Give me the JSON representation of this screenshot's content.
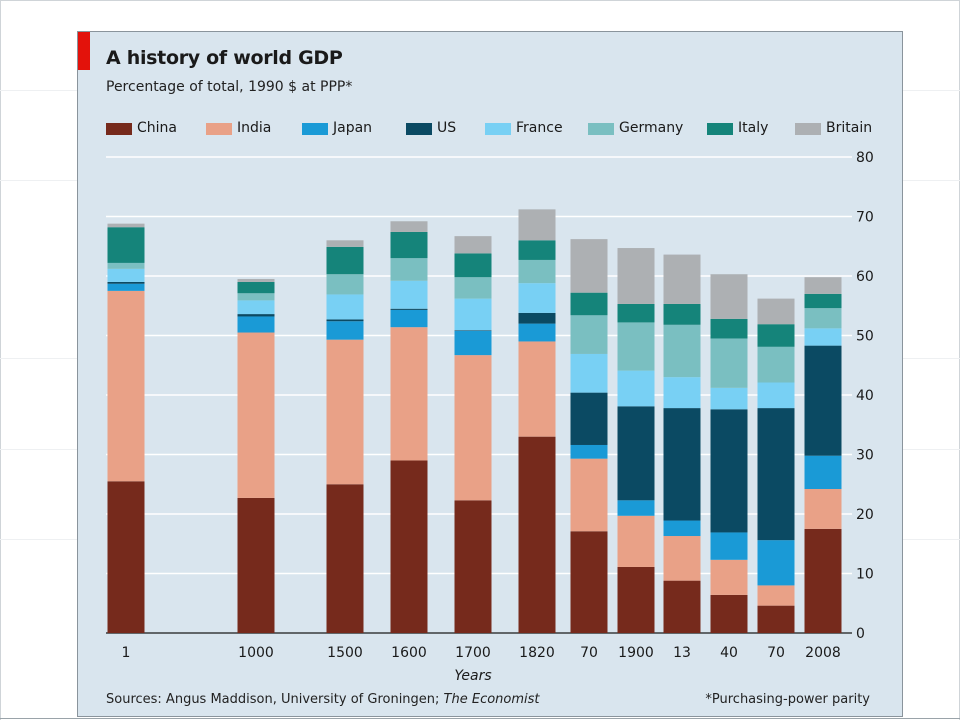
{
  "chart_data": {
    "type": "bar",
    "stacked": true,
    "title": "A history of world GDP",
    "subtitle": "Percentage of total, 1990 $  at PPP*",
    "xlabel": "Years",
    "ylabel": "",
    "ylim": [
      0,
      80
    ],
    "yticks": [
      "0",
      "10",
      "20",
      "30",
      "40",
      "50",
      "60",
      "70",
      "80"
    ],
    "grid": true,
    "legend_position": "top",
    "categories": [
      "1",
      "1000",
      "1500",
      "1600",
      "1700",
      "1820",
      "70",
      "1900",
      "13",
      "40",
      "70",
      "2008"
    ],
    "series": [
      {
        "name": "China",
        "color": "#762a1c",
        "values": [
          25.5,
          22.7,
          25.0,
          29.0,
          22.3,
          33.0,
          17.1,
          11.1,
          8.8,
          6.4,
          4.6,
          17.5
        ]
      },
      {
        "name": "India",
        "color": "#e9a187",
        "values": [
          32.0,
          27.8,
          24.3,
          22.4,
          24.4,
          16.0,
          12.2,
          8.6,
          7.5,
          5.9,
          3.4,
          6.7
        ]
      },
      {
        "name": "Japan",
        "color": "#1a9ad6",
        "values": [
          1.2,
          2.7,
          3.1,
          2.9,
          4.1,
          3.0,
          2.3,
          2.6,
          2.6,
          4.6,
          7.6,
          5.6
        ]
      },
      {
        "name": "US",
        "color": "#0b4a63",
        "values": [
          0.3,
          0.4,
          0.3,
          0.2,
          0.1,
          1.8,
          8.8,
          15.8,
          18.9,
          20.7,
          22.2,
          18.5
        ]
      },
      {
        "name": "France",
        "color": "#78d0f4",
        "values": [
          2.2,
          2.3,
          4.2,
          4.7,
          5.3,
          5.0,
          6.5,
          6.0,
          5.2,
          3.6,
          4.3,
          2.9
        ]
      },
      {
        "name": "Germany",
        "color": "#7abfc1",
        "values": [
          1.0,
          1.2,
          3.4,
          3.8,
          3.6,
          3.9,
          6.5,
          8.1,
          8.8,
          8.3,
          6.0,
          3.4
        ]
      },
      {
        "name": "Italy",
        "color": "#15847a",
        "values": [
          6.0,
          1.9,
          4.6,
          4.4,
          4.0,
          3.3,
          3.8,
          3.1,
          3.5,
          3.3,
          3.8,
          2.4
        ]
      },
      {
        "name": "Britain",
        "color": "#adb0b3",
        "values": [
          0.6,
          0.5,
          1.1,
          1.8,
          2.9,
          5.2,
          9.0,
          9.4,
          8.3,
          7.5,
          4.3,
          2.8
        ]
      }
    ]
  },
  "footer": {
    "source_prefix": "Sources: Angus Maddison, University of Groningen; ",
    "source_italic": "The Economist",
    "footnote": "*Purchasing-power parity"
  }
}
